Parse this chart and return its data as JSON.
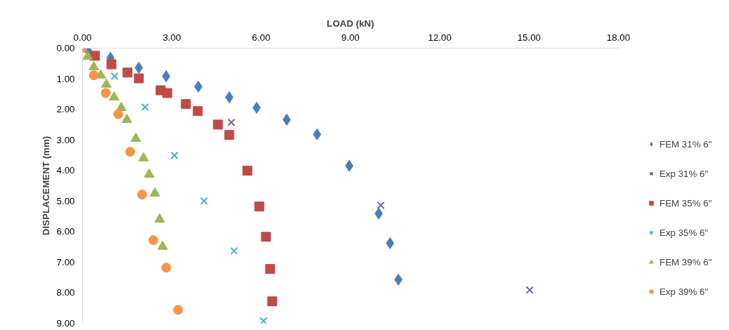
{
  "chart_data": {
    "type": "scatter",
    "xlabel": "LOAD (kN)",
    "ylabel": "DISPLACEMENT (mm)",
    "xlim": [
      0,
      18
    ],
    "ylim": [
      9,
      0
    ],
    "xticks": [
      {
        "value": 0,
        "label": "0.00"
      },
      {
        "value": 3,
        "label": "3.00"
      },
      {
        "value": 6,
        "label": "6.00"
      },
      {
        "value": 9,
        "label": "9.00"
      },
      {
        "value": 12,
        "label": "12.00"
      },
      {
        "value": 15,
        "label": "15.00"
      },
      {
        "value": 18,
        "label": "18.00"
      }
    ],
    "yticks": [
      {
        "value": 0,
        "label": "0.00"
      },
      {
        "value": 1,
        "label": "1.00"
      },
      {
        "value": 2,
        "label": "2.00"
      },
      {
        "value": 3,
        "label": "3.00"
      },
      {
        "value": 4,
        "label": "4.00"
      },
      {
        "value": 5,
        "label": "5.00"
      },
      {
        "value": 6,
        "label": "6.00"
      },
      {
        "value": 7,
        "label": "7.00"
      },
      {
        "value": 8,
        "label": "8.00"
      },
      {
        "value": 9,
        "label": "9.00"
      }
    ],
    "grid": false,
    "legend": "right",
    "series": [
      {
        "name": "FEM 31% 6\"",
        "color": "#4a7ebb",
        "marker": "diamond",
        "x": [
          0.19,
          0.94,
          1.89,
          2.81,
          3.89,
          4.93,
          5.85,
          6.86,
          7.88,
          8.96,
          9.95,
          10.33,
          10.61
        ],
        "values": [
          0.09,
          0.32,
          0.64,
          0.92,
          1.26,
          1.61,
          1.95,
          2.34,
          2.82,
          3.85,
          5.41,
          6.38,
          7.57
        ]
      },
      {
        "name": "Exp 31% 6\"",
        "color": "#7d60a0",
        "marker": "cross",
        "x": [
          5.0,
          10.02,
          15.02
        ],
        "values": [
          2.43,
          5.14,
          7.91
        ]
      },
      {
        "name": "FEM 35% 6\"",
        "color": "#be4b48",
        "marker": "square",
        "x": [
          0.42,
          0.97,
          1.51,
          1.89,
          2.62,
          2.85,
          3.47,
          3.87,
          4.55,
          4.93,
          5.54,
          5.94,
          6.16,
          6.3,
          6.37
        ],
        "values": [
          0.25,
          0.53,
          0.8,
          0.99,
          1.38,
          1.47,
          1.83,
          2.06,
          2.5,
          2.84,
          4.01,
          5.18,
          6.17,
          7.22,
          8.28
        ]
      },
      {
        "name": "Exp 35% 6\"",
        "color": "#4bacc6",
        "marker": "cross",
        "x": [
          1.08,
          2.1,
          3.09,
          4.08,
          5.09,
          6.08
        ],
        "values": [
          0.92,
          1.93,
          3.51,
          5.0,
          6.63,
          8.92
        ]
      },
      {
        "name": "FEM 39% 6\"",
        "color": "#98b954",
        "marker": "triangle",
        "x": [
          0.17,
          0.38,
          0.61,
          0.8,
          1.06,
          1.3,
          1.49,
          1.79,
          2.05,
          2.24,
          2.43,
          2.59,
          2.69
        ],
        "values": [
          0.28,
          0.62,
          0.89,
          1.19,
          1.61,
          1.95,
          2.34,
          2.96,
          3.6,
          4.13,
          4.75,
          5.6,
          6.49
        ]
      },
      {
        "name": "Exp 39% 6\"",
        "color": "#f79646",
        "marker": "circle",
        "x": [
          0,
          0.38,
          0.78,
          1.2,
          1.6,
          2.0,
          2.38,
          2.81,
          3.21
        ],
        "values": [
          0,
          0.89,
          1.47,
          2.16,
          3.39,
          4.79,
          6.28,
          7.18,
          8.56
        ]
      }
    ]
  }
}
